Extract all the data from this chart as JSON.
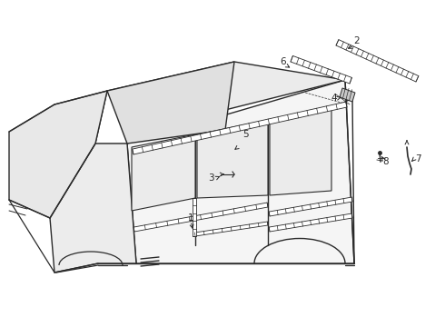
{
  "bg": "#ffffff",
  "lc": "#2a2a2a",
  "fig_w": 4.9,
  "fig_h": 3.6,
  "dpi": 100
}
